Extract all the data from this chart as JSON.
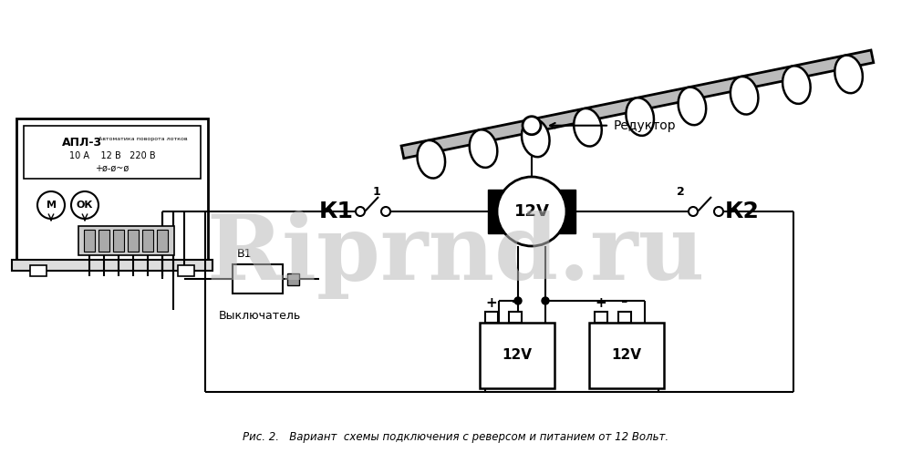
{
  "title": "Рис. 2.   Вариант  схемы подключения с реверсом и питанием от 12 Вольт.",
  "watermark": "Riprnd.ru",
  "bg_color": "#ffffff",
  "fg_color": "#000000",
  "gray_color": "#888888",
  "light_gray": "#cccccc",
  "med_gray": "#aaaaaa",
  "dark_gray": "#999999",
  "bar_gray": "#bbbbbb",
  "din_gray": "#dddddd",
  "apl3_label": "АПЛ-3",
  "apl3_sub": "Автоматика поворота лотков",
  "apl3_line2": "10 А    12 В   220 В",
  "apl3_line3": "+ø-ø~ø",
  "k1_label": "К1",
  "k2_label": "К2",
  "motor_label": "12V",
  "reductor_label": "Редуктор",
  "switch_label": "В1",
  "switch_sub": "Выключатель",
  "label_1": "1",
  "label_2": "2",
  "battery_label": "12V",
  "m_label": "М",
  "ok_label": "ОК"
}
